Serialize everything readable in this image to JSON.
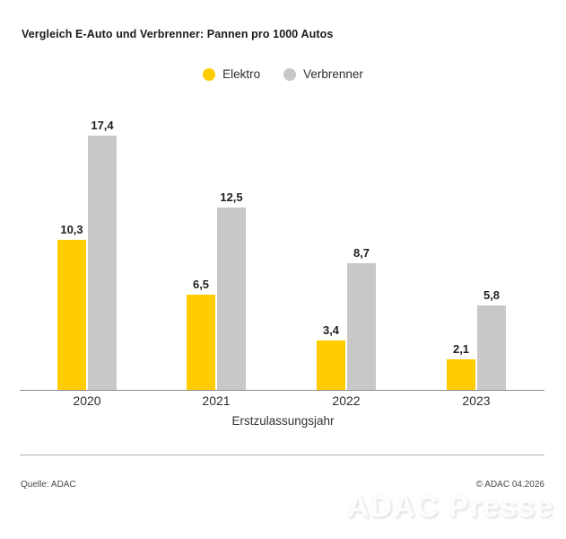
{
  "title": "Vergleich E-Auto und Verbrenner: Pannen pro 1000 Autos",
  "legend": {
    "items": [
      {
        "label": "Elektro",
        "color": "#FFCC00"
      },
      {
        "label": "Verbrenner",
        "color": "#C9C7C7"
      }
    ]
  },
  "chart_data": {
    "type": "bar",
    "title": "Vergleich E-Auto und Verbrenner: Pannen pro 1000 Autos",
    "categories": [
      "2020",
      "2021",
      "2022",
      "2023"
    ],
    "series": [
      {
        "name": "Elektro",
        "color": "#FFCC00",
        "values": [
          10.3,
          6.5,
          3.4,
          2.1
        ],
        "value_labels": [
          "10,3",
          "6,5",
          "3,4",
          "2,1"
        ]
      },
      {
        "name": "Verbrenner",
        "color": "#C9C7C7",
        "values": [
          17.4,
          12.5,
          8.7,
          5.8
        ],
        "value_labels": [
          "17,4",
          "12,5",
          "8,7",
          "5,8"
        ]
      }
    ],
    "xlabel": "Erstzulassungsjahr",
    "ylabel": "",
    "ylim": [
      0,
      18
    ],
    "grid": false,
    "legend_position": "top-center",
    "value_label_decimal": "comma"
  },
  "footer": {
    "source": "Quelle: ADAC",
    "copyright": "© ADAC 04.2026"
  },
  "watermark": "ADAC Presse",
  "colors": {
    "elektro": "#FFCC00",
    "verbrenner": "#C9C7C7",
    "axis": "#8C8C8C",
    "divider": "#B0B0B0",
    "text": "#1A1A1A"
  }
}
